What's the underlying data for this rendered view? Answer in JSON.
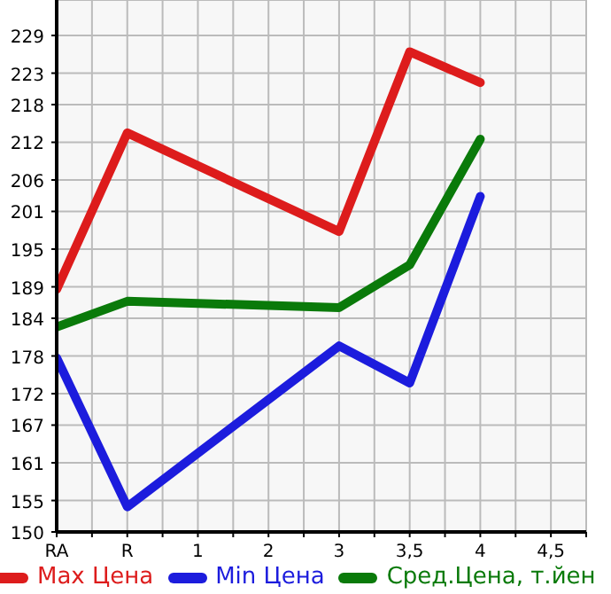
{
  "chart_data": {
    "type": "line",
    "categories": [
      "RA",
      "R",
      "1",
      "2",
      "3",
      "3,5",
      "4",
      "4,5"
    ],
    "series": [
      {
        "name": "Max Цена",
        "color": "#dd1c1c",
        "values": [
          188.6,
          213.5,
          null,
          null,
          197.8,
          226.4,
          221.5,
          null
        ]
      },
      {
        "name": "Min Цена",
        "color": "#1c1cdd",
        "values": [
          177.7,
          154.0,
          null,
          null,
          179.6,
          173.7,
          203.4,
          null
        ]
      },
      {
        "name": "Сред.Цена, т.йен",
        "color": "#0a7a0a",
        "values": [
          182.6,
          186.7,
          null,
          null,
          185.7,
          192.5,
          212.5,
          null
        ]
      }
    ],
    "ylim": [
      150,
      234.64
    ],
    "yticks": [
      150,
      155,
      161,
      167,
      172,
      178,
      184,
      189,
      195,
      201,
      206,
      212,
      218,
      223,
      229
    ],
    "grid": true,
    "legend": "bottom",
    "marker": "none",
    "line_style": "solid"
  }
}
